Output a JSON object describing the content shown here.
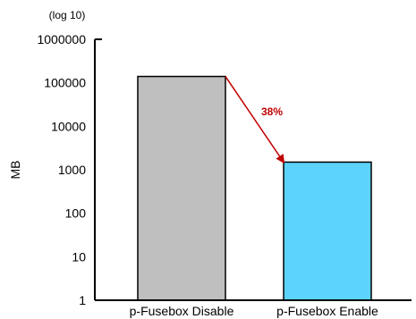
{
  "chart_data": {
    "type": "bar",
    "scale": "log10",
    "scale_note": "(log 10)",
    "ylabel": "MB",
    "xlabel": "",
    "ylim": [
      1,
      1000000
    ],
    "yticks": [
      "1000000",
      "100000",
      "10000",
      "1000",
      "100",
      "10",
      "1"
    ],
    "ytick_values": [
      1000000,
      100000,
      10000,
      1000,
      100,
      10,
      1
    ],
    "categories": [
      "p-Fusebox Disable",
      "p-Fusebox Enable"
    ],
    "values": [
      140000,
      1500
    ],
    "bar_colors": [
      "#bfbfbf",
      "#5bd3fb"
    ],
    "annotation": {
      "text": "38%",
      "color": "#c00000",
      "from": "p-Fusebox Disable",
      "to": "p-Fusebox Enable"
    },
    "grid": false,
    "legend": "none"
  }
}
